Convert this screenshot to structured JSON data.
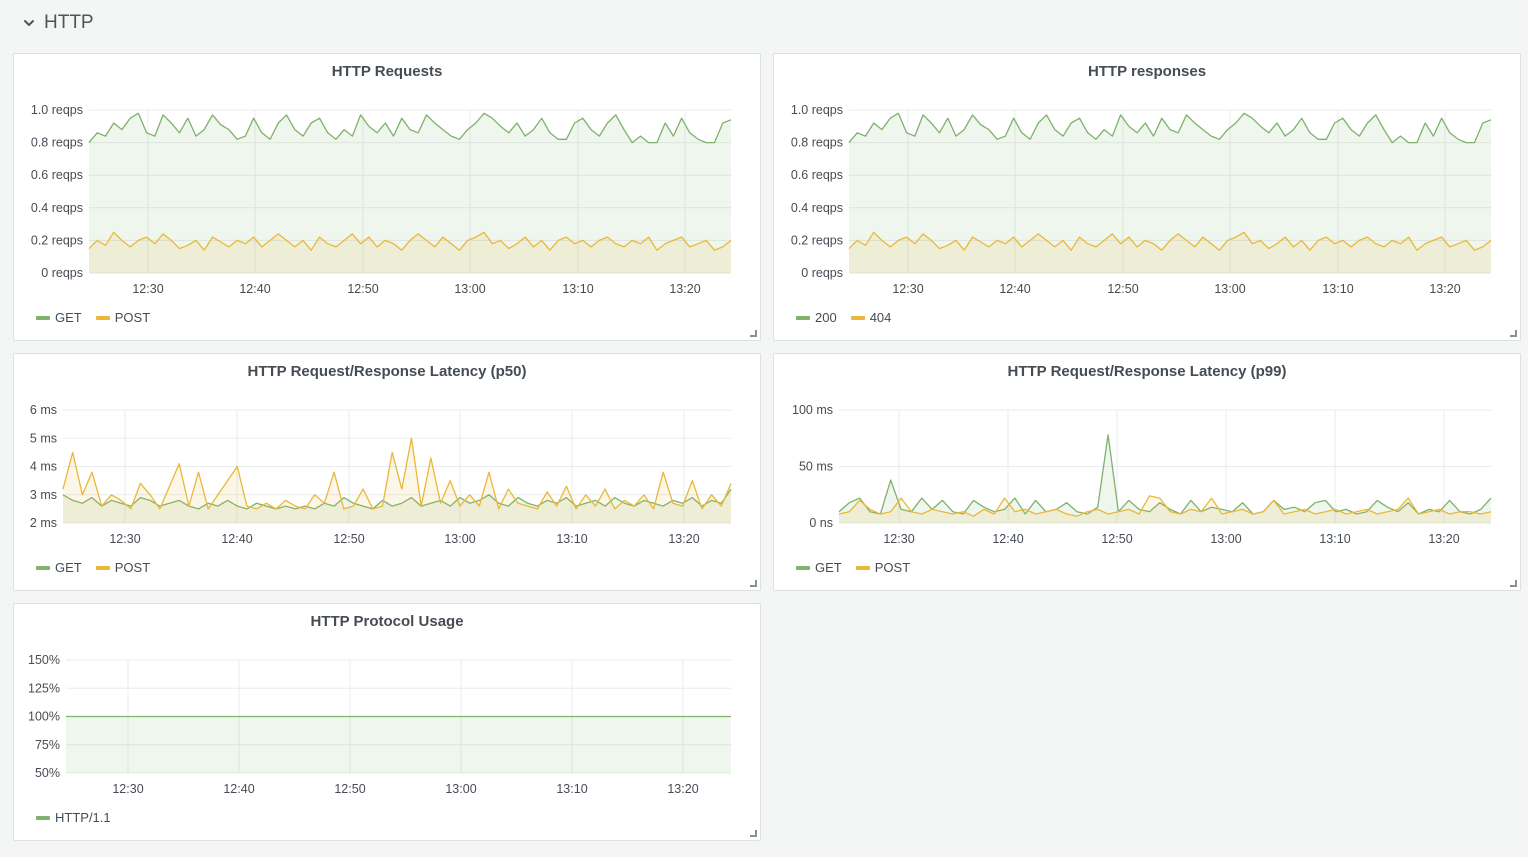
{
  "row": {
    "title": "HTTP",
    "icon": "chevron-down-icon"
  },
  "colors": {
    "green": "#7eb26d",
    "yellow": "#eab839",
    "grid": "#e9ebed"
  },
  "panels": [
    {
      "title": "HTTP Requests",
      "chart_data": {
        "type": "line",
        "title": "HTTP Requests",
        "x_ticks": [
          "12:30",
          "12:40",
          "12:50",
          "13:00",
          "13:10",
          "13:20"
        ],
        "x_range": [
          "12:24:30",
          "13:24:30"
        ],
        "y_ticks": [
          "0 reqps",
          "0.2 reqps",
          "0.4 reqps",
          "0.6 reqps",
          "0.8 reqps",
          "1.0 reqps"
        ],
        "ylim": [
          0,
          1.0
        ],
        "series": [
          {
            "name": "GET",
            "color": "#7eb26d",
            "values": [
              0.8,
              0.86,
              0.84,
              0.92,
              0.88,
              0.95,
              0.98,
              0.86,
              0.84,
              0.97,
              0.92,
              0.86,
              0.95,
              0.84,
              0.88,
              0.97,
              0.91,
              0.88,
              0.82,
              0.84,
              0.95,
              0.86,
              0.82,
              0.92,
              0.97,
              0.88,
              0.84,
              0.92,
              0.95,
              0.86,
              0.82,
              0.88,
              0.84,
              0.97,
              0.9,
              0.86,
              0.92,
              0.84,
              0.95,
              0.88,
              0.86,
              0.97,
              0.92,
              0.88,
              0.84,
              0.82,
              0.88,
              0.92,
              0.98,
              0.95,
              0.9,
              0.86,
              0.92,
              0.84,
              0.88,
              0.95,
              0.86,
              0.82,
              0.82,
              0.92,
              0.95,
              0.88,
              0.84,
              0.92,
              0.97,
              0.88,
              0.8,
              0.84,
              0.8,
              0.8,
              0.92,
              0.84,
              0.95,
              0.86,
              0.82,
              0.8,
              0.8,
              0.92,
              0.94
            ]
          },
          {
            "name": "POST",
            "color": "#eab839",
            "values": [
              0.15,
              0.2,
              0.17,
              0.25,
              0.2,
              0.16,
              0.2,
              0.22,
              0.18,
              0.24,
              0.2,
              0.15,
              0.17,
              0.2,
              0.14,
              0.22,
              0.19,
              0.16,
              0.2,
              0.18,
              0.22,
              0.16,
              0.2,
              0.24,
              0.2,
              0.16,
              0.2,
              0.14,
              0.22,
              0.18,
              0.16,
              0.2,
              0.24,
              0.18,
              0.22,
              0.16,
              0.2,
              0.18,
              0.14,
              0.2,
              0.24,
              0.2,
              0.16,
              0.22,
              0.18,
              0.14,
              0.2,
              0.22,
              0.25,
              0.18,
              0.2,
              0.15,
              0.18,
              0.22,
              0.16,
              0.2,
              0.14,
              0.2,
              0.22,
              0.18,
              0.2,
              0.16,
              0.2,
              0.22,
              0.18,
              0.16,
              0.2,
              0.18,
              0.22,
              0.14,
              0.18,
              0.2,
              0.22,
              0.16,
              0.18,
              0.2,
              0.14,
              0.16,
              0.2
            ]
          }
        ]
      },
      "legend": [
        "GET",
        "POST"
      ]
    },
    {
      "title": "HTTP responses",
      "chart_data": {
        "type": "line",
        "title": "HTTP responses",
        "x_ticks": [
          "12:30",
          "12:40",
          "12:50",
          "13:00",
          "13:10",
          "13:20"
        ],
        "x_range": [
          "12:24:30",
          "13:24:30"
        ],
        "y_ticks": [
          "0 reqps",
          "0.2 reqps",
          "0.4 reqps",
          "0.6 reqps",
          "0.8 reqps",
          "1.0 reqps"
        ],
        "ylim": [
          0,
          1.0
        ],
        "series": [
          {
            "name": "200",
            "color": "#7eb26d",
            "values": [
              0.8,
              0.86,
              0.84,
              0.92,
              0.88,
              0.95,
              0.98,
              0.86,
              0.84,
              0.97,
              0.92,
              0.86,
              0.95,
              0.84,
              0.88,
              0.97,
              0.91,
              0.88,
              0.82,
              0.84,
              0.95,
              0.86,
              0.82,
              0.92,
              0.97,
              0.88,
              0.84,
              0.92,
              0.95,
              0.86,
              0.82,
              0.88,
              0.84,
              0.97,
              0.9,
              0.86,
              0.92,
              0.84,
              0.95,
              0.88,
              0.86,
              0.97,
              0.92,
              0.88,
              0.84,
              0.82,
              0.88,
              0.92,
              0.98,
              0.95,
              0.9,
              0.86,
              0.92,
              0.84,
              0.88,
              0.95,
              0.86,
              0.82,
              0.82,
              0.92,
              0.95,
              0.88,
              0.84,
              0.92,
              0.97,
              0.88,
              0.8,
              0.84,
              0.8,
              0.8,
              0.92,
              0.84,
              0.95,
              0.86,
              0.82,
              0.8,
              0.8,
              0.92,
              0.94
            ]
          },
          {
            "name": "404",
            "color": "#eab839",
            "values": [
              0.15,
              0.2,
              0.17,
              0.25,
              0.2,
              0.16,
              0.2,
              0.22,
              0.18,
              0.24,
              0.2,
              0.15,
              0.17,
              0.2,
              0.14,
              0.22,
              0.19,
              0.16,
              0.2,
              0.18,
              0.22,
              0.16,
              0.2,
              0.24,
              0.2,
              0.16,
              0.2,
              0.14,
              0.22,
              0.18,
              0.16,
              0.2,
              0.24,
              0.18,
              0.22,
              0.16,
              0.2,
              0.18,
              0.14,
              0.2,
              0.24,
              0.2,
              0.16,
              0.22,
              0.18,
              0.14,
              0.2,
              0.22,
              0.25,
              0.18,
              0.2,
              0.15,
              0.18,
              0.22,
              0.16,
              0.2,
              0.14,
              0.2,
              0.22,
              0.18,
              0.2,
              0.16,
              0.2,
              0.22,
              0.18,
              0.16,
              0.2,
              0.18,
              0.22,
              0.14,
              0.18,
              0.2,
              0.22,
              0.16,
              0.18,
              0.2,
              0.14,
              0.16,
              0.2
            ]
          }
        ]
      },
      "legend": [
        "200",
        "404"
      ]
    },
    {
      "title": "HTTP Request/Response Latency (p50)",
      "chart_data": {
        "type": "line",
        "title": "HTTP Request/Response Latency (p50)",
        "x_ticks": [
          "12:30",
          "12:40",
          "12:50",
          "13:00",
          "13:10",
          "13:20"
        ],
        "x_range": [
          "12:25",
          "13:25"
        ],
        "y_ticks": [
          "2 ms",
          "3 ms",
          "4 ms",
          "5 ms",
          "6 ms"
        ],
        "ylim": [
          2,
          6
        ],
        "series": [
          {
            "name": "GET",
            "color": "#7eb26d",
            "values": [
              3.0,
              2.8,
              2.7,
              2.9,
              2.6,
              2.8,
              2.7,
              2.6,
              2.9,
              2.8,
              2.6,
              2.7,
              2.8,
              2.6,
              2.5,
              2.7,
              2.6,
              2.8,
              2.6,
              2.5,
              2.7,
              2.6,
              2.5,
              2.6,
              2.5,
              2.6,
              2.5,
              2.7,
              2.6,
              2.9,
              2.7,
              2.6,
              2.5,
              2.8,
              2.6,
              2.7,
              2.9,
              2.6,
              2.7,
              2.8,
              2.6,
              2.9,
              2.7,
              2.8,
              3.0,
              2.7,
              2.6,
              2.9,
              2.7,
              2.6,
              2.8,
              2.7,
              2.9,
              2.6,
              2.7,
              2.8,
              2.6,
              2.9,
              2.7,
              2.6,
              2.8,
              2.7,
              2.6,
              2.8,
              2.7,
              2.9,
              2.6,
              2.8,
              2.7,
              3.2
            ]
          },
          {
            "name": "POST",
            "color": "#eab839",
            "values": [
              3.2,
              4.5,
              3.0,
              3.8,
              2.6,
              3.0,
              2.8,
              2.5,
              3.4,
              3.0,
              2.5,
              3.3,
              4.1,
              2.6,
              3.8,
              2.5,
              3.0,
              3.5,
              4.0,
              2.6,
              2.5,
              2.7,
              2.5,
              2.8,
              2.6,
              2.5,
              3.0,
              2.7,
              3.8,
              2.5,
              2.6,
              3.2,
              2.5,
              2.6,
              4.5,
              3.2,
              5.0,
              2.6,
              4.3,
              2.7,
              3.5,
              2.6,
              3.0,
              2.6,
              3.8,
              2.5,
              3.2,
              2.7,
              2.6,
              2.5,
              3.1,
              2.6,
              3.3,
              2.5,
              3.0,
              2.6,
              3.2,
              2.5,
              2.8,
              2.6,
              3.0,
              2.5,
              3.8,
              2.7,
              2.6,
              3.5,
              2.5,
              3.0,
              2.6,
              3.4
            ]
          }
        ]
      },
      "legend": [
        "GET",
        "POST"
      ]
    },
    {
      "title": "HTTP Request/Response Latency (p99)",
      "chart_data": {
        "type": "line",
        "title": "HTTP Request/Response Latency (p99)",
        "x_ticks": [
          "12:30",
          "12:40",
          "12:50",
          "13:00",
          "13:10",
          "13:20"
        ],
        "x_range": [
          "12:24:30",
          "13:24:30"
        ],
        "y_ticks": [
          "0 ns",
          "50 ms",
          "100 ms"
        ],
        "ylim": [
          0,
          100
        ],
        "series": [
          {
            "name": "GET",
            "color": "#7eb26d",
            "values": [
              10,
              18,
              22,
              10,
              8,
              38,
              12,
              10,
              22,
              12,
              20,
              10,
              8,
              20,
              14,
              10,
              12,
              22,
              8,
              20,
              10,
              12,
              18,
              10,
              8,
              14,
              78,
              10,
              20,
              12,
              10,
              18,
              12,
              8,
              20,
              10,
              14,
              12,
              10,
              18,
              8,
              10,
              20,
              12,
              14,
              10,
              18,
              20,
              10,
              12,
              8,
              10,
              20,
              14,
              10,
              18,
              8,
              12,
              10,
              20,
              10,
              8,
              12,
              22
            ]
          },
          {
            "name": "POST",
            "color": "#eab839",
            "values": [
              8,
              10,
              20,
              12,
              8,
              10,
              22,
              10,
              8,
              12,
              10,
              8,
              10,
              6,
              12,
              8,
              22,
              10,
              12,
              8,
              10,
              12,
              8,
              6,
              10,
              12,
              8,
              10,
              12,
              8,
              24,
              22,
              10,
              8,
              12,
              10,
              22,
              8,
              10,
              12,
              8,
              10,
              20,
              8,
              10,
              12,
              8,
              10,
              12,
              8,
              10,
              12,
              8,
              10,
              12,
              22,
              8,
              10,
              12,
              8,
              10,
              10,
              8,
              10
            ]
          }
        ]
      },
      "legend": [
        "GET",
        "POST"
      ]
    },
    {
      "title": "HTTP Protocol Usage",
      "chart_data": {
        "type": "line",
        "title": "HTTP Protocol Usage",
        "x_ticks": [
          "12:30",
          "12:40",
          "12:50",
          "13:00",
          "13:10",
          "13:20"
        ],
        "x_range": [
          "12:24:30",
          "13:24:30"
        ],
        "y_ticks": [
          "50%",
          "75%",
          "100%",
          "125%",
          "150%"
        ],
        "ylim": [
          50,
          150
        ],
        "series": [
          {
            "name": "HTTP/1.1",
            "color": "#7eb26d",
            "values": [
              100,
              100,
              100,
              100,
              100,
              100,
              100,
              100,
              100,
              100,
              100,
              100,
              100,
              100,
              100,
              100,
              100,
              100,
              100,
              100,
              100
            ]
          }
        ]
      },
      "legend": [
        "HTTP/1.1"
      ]
    }
  ]
}
